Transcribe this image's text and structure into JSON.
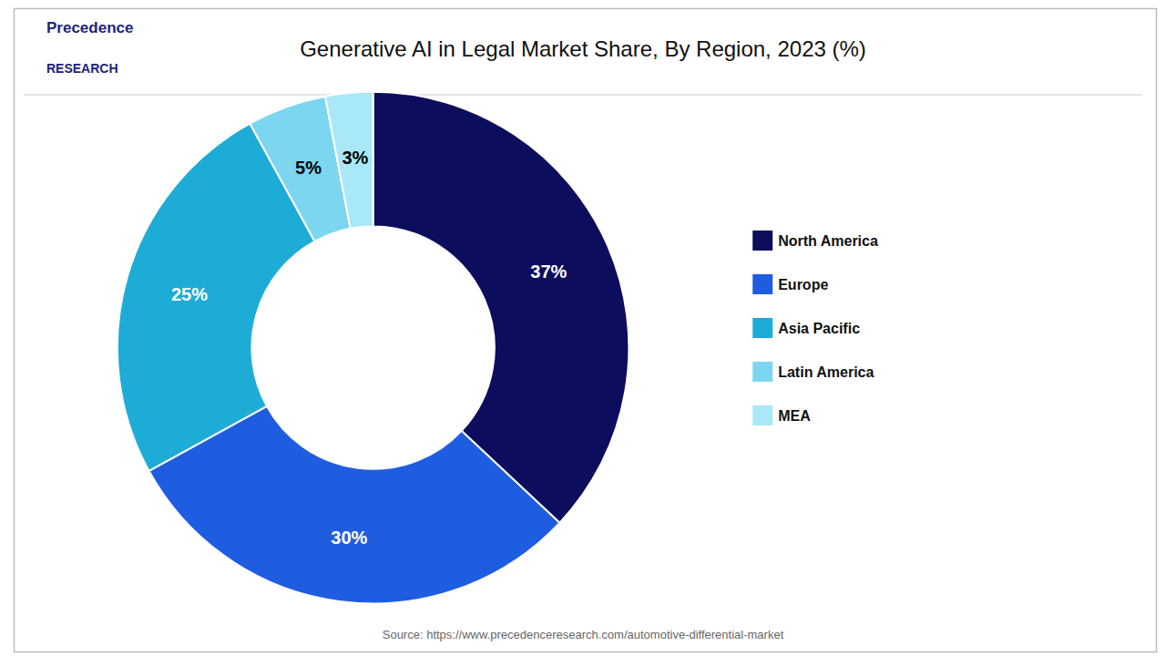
{
  "chart_data": {
    "type": "donut",
    "title": "Generative AI in Legal Market Share, By Region, 2023 (%)",
    "categories": [
      "North America",
      "Europe",
      "Asia Pacific",
      "Latin America",
      "MEA"
    ],
    "values": [
      37,
      30,
      25,
      5,
      3
    ],
    "value_labels": [
      "37%",
      "30%",
      "25%",
      "5%",
      "3%"
    ],
    "data_labels": true,
    "colors": [
      "#0d0d5e",
      "#1f5de0",
      "#1dacd6",
      "#7dd6f0",
      "#a8e8f8"
    ],
    "legend": "right",
    "annotations": [
      "Precedence",
      "RESEARCH",
      "Source: https://www.precedenceresearch.com/automotive-differential-market"
    ]
  }
}
